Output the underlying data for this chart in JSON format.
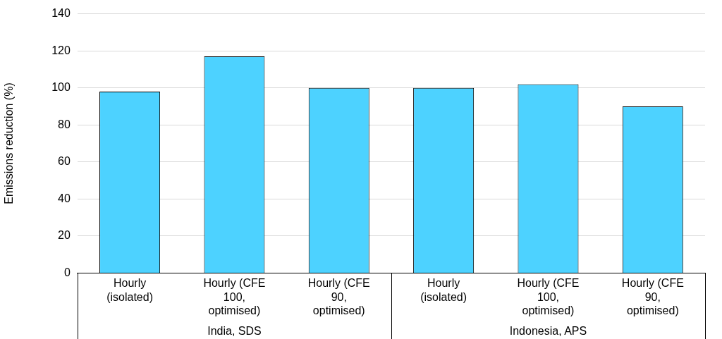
{
  "chart_data": {
    "type": "bar",
    "ylabel": "Emissions reduction (%)",
    "categories": [
      "Hourly (isolated)",
      "Hourly (CFE 100, optimised)",
      "Hourly (CFE 90, optimised)",
      "Hourly (isolated)",
      "Hourly (CFE 100, optimised)",
      "Hourly (CFE 90, optimised)"
    ],
    "values": [
      98,
      117,
      100,
      100,
      102,
      90
    ],
    "color": "#4dd2ff",
    "ylim": [
      0,
      140
    ],
    "yticks": [
      0,
      20,
      40,
      60,
      80,
      100,
      120,
      140
    ],
    "grid": "y",
    "legend": false,
    "annotations": [
      "India, SDS",
      "Indonesia, APS"
    ]
  }
}
